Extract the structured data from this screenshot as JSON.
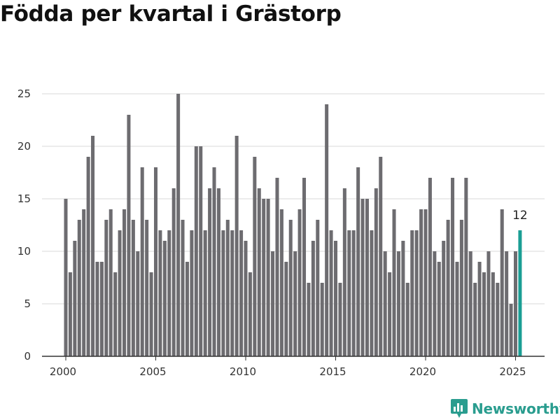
{
  "brand": {
    "name": "Newsworthy",
    "icon": "newsworthy-logo-icon",
    "color": "#2a9d8f"
  },
  "colors": {
    "bar": "#6d6c70",
    "highlight": "#1a9e94",
    "grid": "#d9d9d9",
    "axis": "#333333"
  },
  "chart_data": {
    "type": "bar",
    "title": "Födda per kvartal i Grästorp",
    "xlabel": "",
    "ylabel": "",
    "ylim": [
      0,
      25
    ],
    "yticks": [
      0,
      5,
      10,
      15,
      20,
      25
    ],
    "xticks": [
      "2000",
      "2005",
      "2010",
      "2015",
      "2020",
      "2025"
    ],
    "xlim": [
      "2000 Q1",
      "2025 Q2"
    ],
    "grid": true,
    "highlight_label": "12",
    "categories": [
      "2000 Q1",
      "2000 Q2",
      "2000 Q3",
      "2000 Q4",
      "2001 Q1",
      "2001 Q2",
      "2001 Q3",
      "2001 Q4",
      "2002 Q1",
      "2002 Q2",
      "2002 Q3",
      "2002 Q4",
      "2003 Q1",
      "2003 Q2",
      "2003 Q3",
      "2003 Q4",
      "2004 Q1",
      "2004 Q2",
      "2004 Q3",
      "2004 Q4",
      "2005 Q1",
      "2005 Q2",
      "2005 Q3",
      "2005 Q4",
      "2006 Q1",
      "2006 Q2",
      "2006 Q3",
      "2006 Q4",
      "2007 Q1",
      "2007 Q2",
      "2007 Q3",
      "2007 Q4",
      "2008 Q1",
      "2008 Q2",
      "2008 Q3",
      "2008 Q4",
      "2009 Q1",
      "2009 Q2",
      "2009 Q3",
      "2009 Q4",
      "2010 Q1",
      "2010 Q2",
      "2010 Q3",
      "2010 Q4",
      "2011 Q1",
      "2011 Q2",
      "2011 Q3",
      "2011 Q4",
      "2012 Q1",
      "2012 Q2",
      "2012 Q3",
      "2012 Q4",
      "2013 Q1",
      "2013 Q2",
      "2013 Q3",
      "2013 Q4",
      "2014 Q1",
      "2014 Q2",
      "2014 Q3",
      "2014 Q4",
      "2015 Q1",
      "2015 Q2",
      "2015 Q3",
      "2015 Q4",
      "2016 Q1",
      "2016 Q2",
      "2016 Q3",
      "2016 Q4",
      "2017 Q1",
      "2017 Q2",
      "2017 Q3",
      "2017 Q4",
      "2018 Q1",
      "2018 Q2",
      "2018 Q3",
      "2018 Q4",
      "2019 Q1",
      "2019 Q2",
      "2019 Q3",
      "2019 Q4",
      "2020 Q1",
      "2020 Q2",
      "2020 Q3",
      "2020 Q4",
      "2021 Q1",
      "2021 Q2",
      "2021 Q3",
      "2021 Q4",
      "2022 Q1",
      "2022 Q2",
      "2022 Q3",
      "2022 Q4",
      "2023 Q1",
      "2023 Q2",
      "2023 Q3",
      "2023 Q4",
      "2024 Q1",
      "2024 Q2",
      "2024 Q3",
      "2024 Q4",
      "2025 Q1",
      "2025 Q2"
    ],
    "values": [
      15,
      8,
      11,
      13,
      14,
      19,
      21,
      9,
      9,
      13,
      14,
      8,
      12,
      14,
      23,
      13,
      10,
      18,
      13,
      8,
      18,
      12,
      11,
      12,
      16,
      25,
      13,
      9,
      12,
      20,
      20,
      12,
      16,
      18,
      16,
      12,
      13,
      12,
      21,
      12,
      11,
      8,
      19,
      16,
      15,
      15,
      10,
      17,
      14,
      9,
      13,
      10,
      14,
      17,
      7,
      11,
      13,
      7,
      24,
      12,
      11,
      7,
      16,
      12,
      12,
      18,
      15,
      15,
      12,
      16,
      19,
      10,
      8,
      14,
      10,
      11,
      7,
      12,
      12,
      14,
      14,
      17,
      10,
      9,
      11,
      13,
      17,
      9,
      13,
      17,
      10,
      7,
      9,
      8,
      10,
      8,
      7,
      14,
      10,
      5,
      10,
      12
    ]
  }
}
